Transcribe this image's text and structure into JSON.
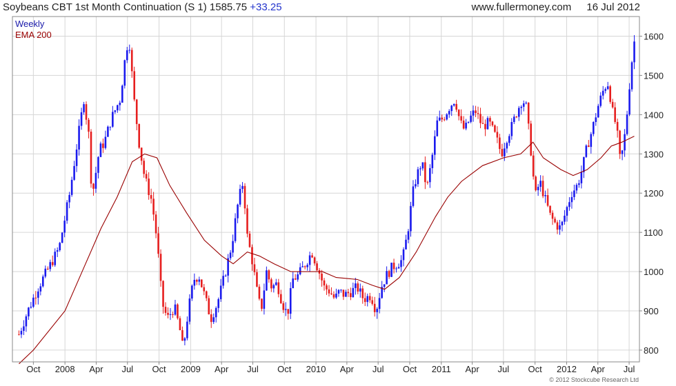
{
  "header": {
    "title": "Soybeans CBT 1st Month Continuation (S 1)",
    "last": "1585.75",
    "change": "+33.25",
    "site": "www.fullermoney.com",
    "date": "16 Jul 2012"
  },
  "copyright": "© 2012 Stockcube Research Ltd",
  "colors": {
    "up": "#1a1aee",
    "down": "#e61e1e",
    "ema": "#990000",
    "grid": "#d6d6d6",
    "frame": "#888888",
    "weekly_label": "#1a1aaa"
  },
  "chart_data": {
    "type": "candlestick",
    "legend": [
      {
        "name": "Weekly",
        "color": "#1a1aaa"
      },
      {
        "name": "EMA 200",
        "color": "#990000"
      }
    ],
    "ylim": [
      770,
      1650
    ],
    "y_ticks": [
      800,
      900,
      1000,
      1100,
      1200,
      1300,
      1400,
      1500,
      1600
    ],
    "x_ticks": [
      {
        "date": "2007-10-01",
        "label": "Oct"
      },
      {
        "date": "2008-01-01",
        "label": "2008"
      },
      {
        "date": "2008-04-01",
        "label": "Apr"
      },
      {
        "date": "2008-07-01",
        "label": "Jul"
      },
      {
        "date": "2008-10-01",
        "label": "Oct"
      },
      {
        "date": "2009-01-01",
        "label": "2009"
      },
      {
        "date": "2009-04-01",
        "label": "Apr"
      },
      {
        "date": "2009-07-01",
        "label": "Jul"
      },
      {
        "date": "2009-10-01",
        "label": "Oct"
      },
      {
        "date": "2010-01-01",
        "label": "2010"
      },
      {
        "date": "2010-04-01",
        "label": "Apr"
      },
      {
        "date": "2010-07-01",
        "label": "Jul"
      },
      {
        "date": "2010-10-01",
        "label": "Oct"
      },
      {
        "date": "2011-01-01",
        "label": "2011"
      },
      {
        "date": "2011-04-01",
        "label": "Apr"
      },
      {
        "date": "2011-07-01",
        "label": "Jul"
      },
      {
        "date": "2011-10-01",
        "label": "Oct"
      },
      {
        "date": "2012-01-01",
        "label": "2012"
      },
      {
        "date": "2012-04-01",
        "label": "Apr"
      },
      {
        "date": "2012-07-01",
        "label": "Jul"
      }
    ],
    "x_range": [
      "2007-08-01",
      "2012-07-31"
    ],
    "close_path": [
      [
        "2007-08-20",
        840
      ],
      [
        "2007-09-15",
        900
      ],
      [
        "2007-10-15",
        960
      ],
      [
        "2007-11-15",
        1010
      ],
      [
        "2007-12-15",
        1060
      ],
      [
        "2008-01-15",
        1200
      ],
      [
        "2008-02-01",
        1300
      ],
      [
        "2008-02-25",
        1440
      ],
      [
        "2008-03-10",
        1350
      ],
      [
        "2008-03-20",
        1190
      ],
      [
        "2008-04-10",
        1310
      ],
      [
        "2008-04-25",
        1330
      ],
      [
        "2008-05-15",
        1390
      ],
      [
        "2008-06-10",
        1440
      ],
      [
        "2008-06-25",
        1550
      ],
      [
        "2008-07-05",
        1600
      ],
      [
        "2008-07-20",
        1440
      ],
      [
        "2008-08-05",
        1320
      ],
      [
        "2008-08-20",
        1240
      ],
      [
        "2008-09-10",
        1180
      ],
      [
        "2008-09-25",
        1080
      ],
      [
        "2008-10-10",
        920
      ],
      [
        "2008-10-25",
        880
      ],
      [
        "2008-11-15",
        910
      ],
      [
        "2008-12-01",
        850
      ],
      [
        "2008-12-10",
        800
      ],
      [
        "2008-12-25",
        900
      ],
      [
        "2009-01-10",
        980
      ],
      [
        "2009-01-25",
        990
      ],
      [
        "2009-02-10",
        940
      ],
      [
        "2009-03-01",
        880
      ],
      [
        "2009-03-20",
        920
      ],
      [
        "2009-04-10",
        990
      ],
      [
        "2009-05-01",
        1070
      ],
      [
        "2009-05-20",
        1180
      ],
      [
        "2009-06-03",
        1230
      ],
      [
        "2009-06-15",
        1090
      ],
      [
        "2009-07-01",
        1020
      ],
      [
        "2009-07-15",
        940
      ],
      [
        "2009-07-25",
        900
      ],
      [
        "2009-08-10",
        1000
      ],
      [
        "2009-08-25",
        960
      ],
      [
        "2009-09-10",
        970
      ],
      [
        "2009-09-25",
        920
      ],
      [
        "2009-10-10",
        890
      ],
      [
        "2009-10-25",
        980
      ],
      [
        "2009-11-10",
        990
      ],
      [
        "2009-12-01",
        1020
      ],
      [
        "2009-12-20",
        1050
      ],
      [
        "2010-01-10",
        1000
      ],
      [
        "2010-01-25",
        960
      ],
      [
        "2010-02-10",
        950
      ],
      [
        "2010-02-25",
        930
      ],
      [
        "2010-03-10",
        950
      ],
      [
        "2010-03-25",
        940
      ],
      [
        "2010-04-15",
        950
      ],
      [
        "2010-05-01",
        960
      ],
      [
        "2010-05-20",
        930
      ],
      [
        "2010-06-10",
        940
      ],
      [
        "2010-06-25",
        900
      ],
      [
        "2010-07-10",
        960
      ],
      [
        "2010-07-25",
        990
      ],
      [
        "2010-08-10",
        1010
      ],
      [
        "2010-08-25",
        1020
      ],
      [
        "2010-09-10",
        1030
      ],
      [
        "2010-09-25",
        1100
      ],
      [
        "2010-10-10",
        1200
      ],
      [
        "2010-10-20",
        1240
      ],
      [
        "2010-11-05",
        1280
      ],
      [
        "2010-11-20",
        1210
      ],
      [
        "2010-12-05",
        1290
      ],
      [
        "2010-12-20",
        1380
      ],
      [
        "2011-01-05",
        1390
      ],
      [
        "2011-01-25",
        1420
      ],
      [
        "2011-02-10",
        1440
      ],
      [
        "2011-02-25",
        1380
      ],
      [
        "2011-03-10",
        1360
      ],
      [
        "2011-03-25",
        1390
      ],
      [
        "2011-04-10",
        1410
      ],
      [
        "2011-05-01",
        1370
      ],
      [
        "2011-05-20",
        1380
      ],
      [
        "2011-06-10",
        1340
      ],
      [
        "2011-06-25",
        1300
      ],
      [
        "2011-07-10",
        1340
      ],
      [
        "2011-07-25",
        1370
      ],
      [
        "2011-08-10",
        1410
      ],
      [
        "2011-08-25",
        1440
      ],
      [
        "2011-09-05",
        1420
      ],
      [
        "2011-09-20",
        1300
      ],
      [
        "2011-10-01",
        1190
      ],
      [
        "2011-10-15",
        1230
      ],
      [
        "2011-11-01",
        1180
      ],
      [
        "2011-11-15",
        1140
      ],
      [
        "2011-12-01",
        1120
      ],
      [
        "2011-12-15",
        1110
      ],
      [
        "2012-01-01",
        1160
      ],
      [
        "2012-01-15",
        1200
      ],
      [
        "2012-02-01",
        1220
      ],
      [
        "2012-02-15",
        1260
      ],
      [
        "2012-03-01",
        1320
      ],
      [
        "2012-03-15",
        1360
      ],
      [
        "2012-04-01",
        1420
      ],
      [
        "2012-04-20",
        1470
      ],
      [
        "2012-05-01",
        1480
      ],
      [
        "2012-05-15",
        1400
      ],
      [
        "2012-05-25",
        1370
      ],
      [
        "2012-06-05",
        1280
      ],
      [
        "2012-06-15",
        1320
      ],
      [
        "2012-06-28",
        1430
      ],
      [
        "2012-07-05",
        1510
      ],
      [
        "2012-07-16",
        1586
      ]
    ],
    "ema_200": [
      [
        "2007-08-20",
        765
      ],
      [
        "2007-10-01",
        800
      ],
      [
        "2008-01-01",
        900
      ],
      [
        "2008-03-01",
        1020
      ],
      [
        "2008-04-15",
        1110
      ],
      [
        "2008-06-01",
        1190
      ],
      [
        "2008-07-15",
        1280
      ],
      [
        "2008-08-20",
        1300
      ],
      [
        "2008-09-25",
        1290
      ],
      [
        "2008-11-01",
        1220
      ],
      [
        "2008-12-20",
        1150
      ],
      [
        "2009-02-10",
        1080
      ],
      [
        "2009-04-01",
        1040
      ],
      [
        "2009-05-05",
        1020
      ],
      [
        "2009-06-15",
        1050
      ],
      [
        "2009-07-20",
        1040
      ],
      [
        "2009-09-01",
        1020
      ],
      [
        "2009-10-20",
        1000
      ],
      [
        "2009-12-01",
        1000
      ],
      [
        "2010-01-20",
        1000
      ],
      [
        "2010-03-01",
        985
      ],
      [
        "2010-05-01",
        980
      ],
      [
        "2010-06-15",
        965
      ],
      [
        "2010-07-20",
        955
      ],
      [
        "2010-09-01",
        985
      ],
      [
        "2010-10-20",
        1050
      ],
      [
        "2010-12-15",
        1140
      ],
      [
        "2011-01-20",
        1190
      ],
      [
        "2011-03-01",
        1230
      ],
      [
        "2011-05-01",
        1270
      ],
      [
        "2011-07-01",
        1290
      ],
      [
        "2011-08-20",
        1300
      ],
      [
        "2011-09-25",
        1330
      ],
      [
        "2011-10-25",
        1290
      ],
      [
        "2011-12-15",
        1260
      ],
      [
        "2012-01-20",
        1245
      ],
      [
        "2012-03-01",
        1260
      ],
      [
        "2012-04-10",
        1290
      ],
      [
        "2012-05-10",
        1320
      ],
      [
        "2012-06-10",
        1330
      ],
      [
        "2012-07-16",
        1345
      ]
    ]
  }
}
